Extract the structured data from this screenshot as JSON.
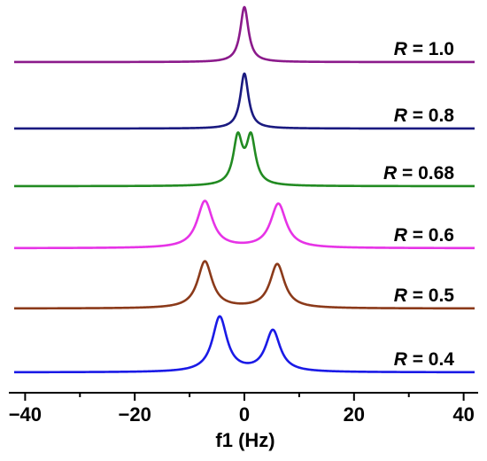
{
  "chart_data": {
    "type": "line",
    "xlabel": "f1 (Hz)",
    "xlim": [
      -42,
      42
    ],
    "xticks": [
      -40,
      -20,
      0,
      20,
      40
    ],
    "xtick_labels": [
      "−40",
      "−20",
      "0",
      "20",
      "40"
    ],
    "series": [
      {
        "name": "1.0",
        "prefix": "R",
        "color": "#8b1a8b",
        "peaks": [
          {
            "x": 0.0,
            "height": 1.0
          }
        ],
        "width": 0.9
      },
      {
        "name": "0.8",
        "prefix": "R",
        "color": "#1a1a80",
        "peaks": [
          {
            "x": 0.0,
            "height": 1.0
          }
        ],
        "width": 0.9
      },
      {
        "name": "0.68",
        "prefix": "R",
        "color": "#228b22",
        "peaks": [
          {
            "x": -1.2,
            "height": 0.85
          },
          {
            "x": 1.2,
            "height": 0.85
          }
        ],
        "width": 1.0
      },
      {
        "name": "0.6",
        "prefix": "R",
        "color": "#e633e6",
        "peaks": [
          {
            "x": -7.2,
            "height": 0.85
          },
          {
            "x": 6.2,
            "height": 0.8
          }
        ],
        "width": 1.7
      },
      {
        "name": "0.5",
        "prefix": "R",
        "color": "#8b3a1a",
        "peaks": [
          {
            "x": -7.2,
            "height": 0.85
          },
          {
            "x": 6.0,
            "height": 0.8
          }
        ],
        "width": 1.6
      },
      {
        "name": "0.4",
        "prefix": "R",
        "color": "#1a1ae6",
        "peaks": [
          {
            "x": -4.5,
            "height": 1.0
          },
          {
            "x": 5.2,
            "height": 0.75
          }
        ],
        "width": 1.6
      }
    ]
  }
}
